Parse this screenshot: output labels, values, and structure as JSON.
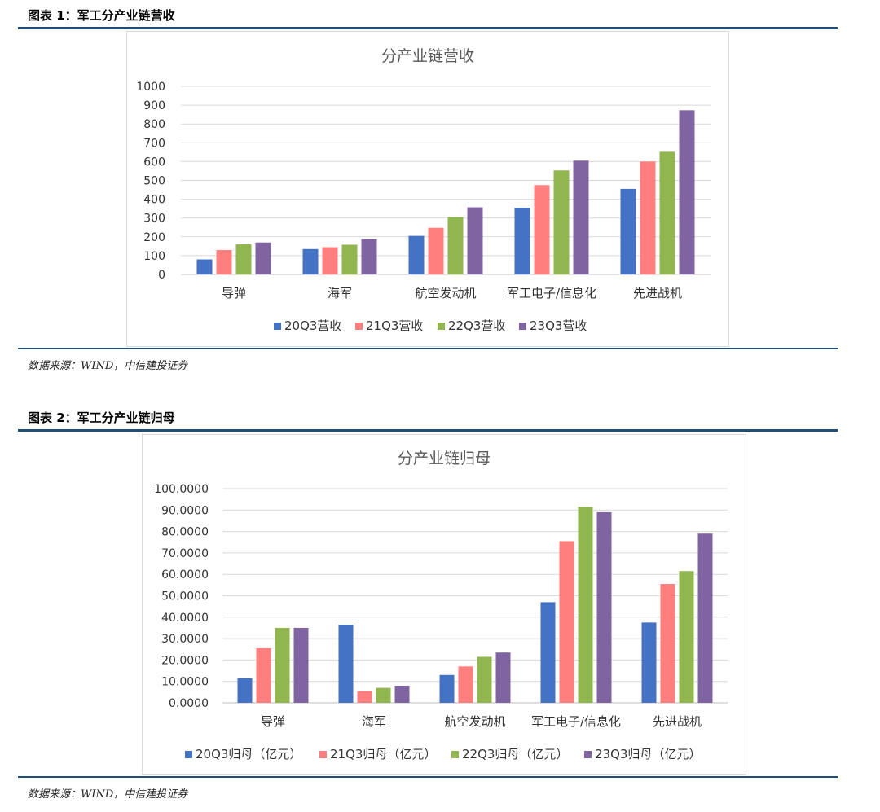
{
  "figures": [
    {
      "label": "图表 1：军工分产业链营收",
      "source": "数据来源：WIND，中信建投证券"
    },
    {
      "label": "图表 2：军工分产业链归母",
      "source": "数据来源：WIND，中信建投证券"
    }
  ],
  "colors": {
    "s1": "#4472c4",
    "s2": "#ff7f7f",
    "s3": "#92b64f",
    "s4": "#8064a2",
    "rule": "#1f4e79"
  },
  "chart_data": [
    {
      "type": "bar",
      "title": "分产业链营收",
      "categories": [
        "导弹",
        "海军",
        "航空发动机",
        "军工电子/信息化",
        "先进战机"
      ],
      "series": [
        {
          "name": "20Q3营收",
          "values": [
            80,
            135,
            205,
            355,
            455
          ]
        },
        {
          "name": "21Q3营收",
          "values": [
            130,
            145,
            248,
            475,
            600
          ]
        },
        {
          "name": "22Q3营收",
          "values": [
            160,
            158,
            305,
            553,
            652
          ]
        },
        {
          "name": "23Q3营收",
          "values": [
            170,
            188,
            357,
            605,
            873
          ]
        }
      ],
      "ylim": [
        0,
        1000
      ],
      "yticks": [
        "0",
        "100",
        "200",
        "300",
        "400",
        "500",
        "600",
        "700",
        "800",
        "900",
        "1000"
      ],
      "grid": true,
      "legend": "bottom"
    },
    {
      "type": "bar",
      "title": "分产业链归母",
      "categories": [
        "导弹",
        "海军",
        "航空发动机",
        "军工电子/信息化",
        "先进战机"
      ],
      "series": [
        {
          "name": "20Q3归母（亿元）",
          "values": [
            11.5,
            36.5,
            13.0,
            47.0,
            37.5
          ]
        },
        {
          "name": "21Q3归母（亿元）",
          "values": [
            25.5,
            5.5,
            17.0,
            75.5,
            55.5
          ]
        },
        {
          "name": "22Q3归母（亿元）",
          "values": [
            35.0,
            7.0,
            21.5,
            91.5,
            61.5
          ]
        },
        {
          "name": "23Q3归母（亿元）",
          "values": [
            35.0,
            8.0,
            23.5,
            89.0,
            79.0
          ]
        }
      ],
      "ylim": [
        0,
        100
      ],
      "yticks": [
        "0.0000",
        "10.0000",
        "20.0000",
        "30.0000",
        "40.0000",
        "50.0000",
        "60.0000",
        "70.0000",
        "80.0000",
        "90.0000",
        "100.0000"
      ],
      "grid": true,
      "legend": "bottom"
    }
  ]
}
